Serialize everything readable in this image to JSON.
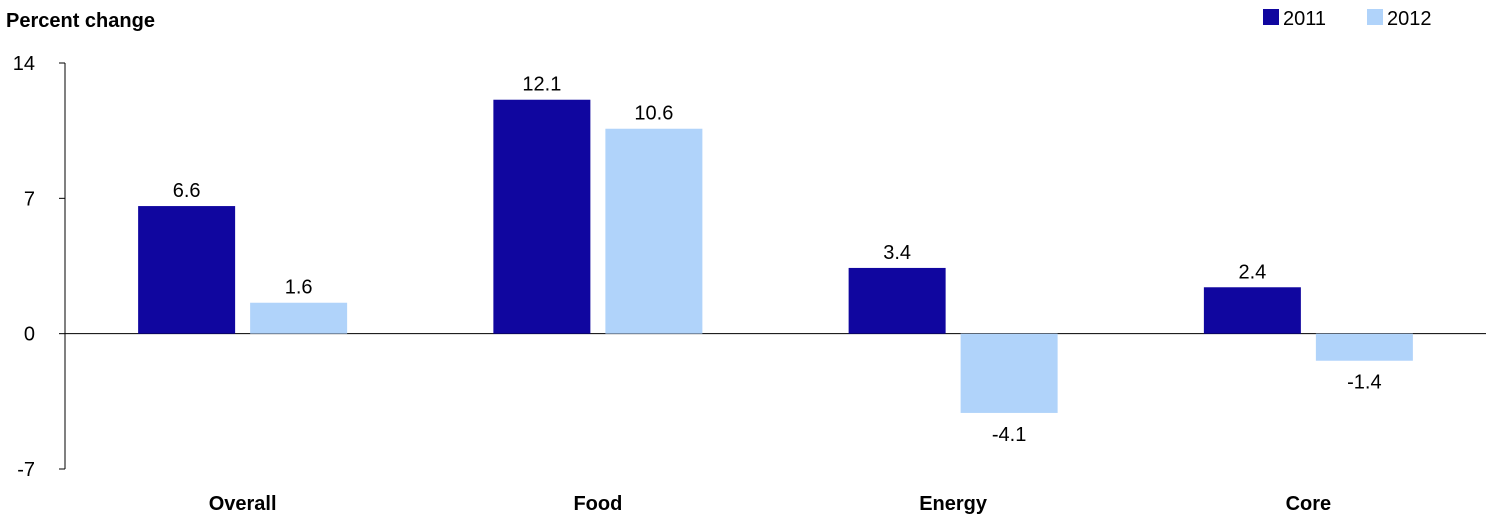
{
  "chart_data": {
    "type": "bar",
    "ylabel": "Percent change",
    "categories": [
      "Overall",
      "Food",
      "Energy",
      "Core"
    ],
    "series": [
      {
        "name": "2011",
        "values": [
          6.6,
          12.1,
          3.4,
          2.4
        ],
        "color": "#10069F"
      },
      {
        "name": "2012",
        "values": [
          1.6,
          10.6,
          -4.1,
          -1.4
        ],
        "color": "#B0D3FA"
      }
    ],
    "ylim": [
      -7,
      14
    ],
    "yticks": [
      -7,
      0,
      7,
      14
    ],
    "legend_position": "top-right",
    "grid": false
  }
}
